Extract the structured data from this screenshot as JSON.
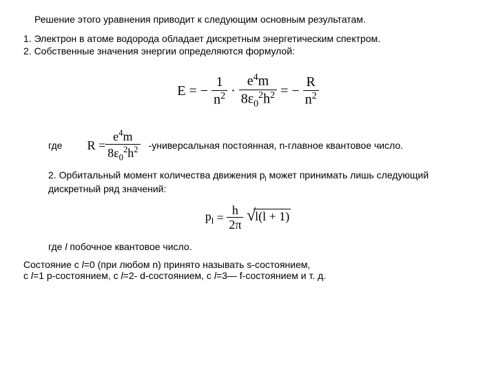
{
  "intro": "Решение этого уравнения приводит к следующим основным результатам.",
  "points": {
    "p1": "1. Электрон в атоме водорода обладает дискретным энергетическим спектром.",
    "p2": "2. Собственные значения энергии определяются формулой:"
  },
  "formula1": {
    "E": "E",
    "eq1": " = − ",
    "one": "1",
    "n2_a": "n",
    "dot": " · ",
    "num2": "e",
    "num2_m": "m",
    "den2_8": "8ε",
    "den2_h": "h",
    "eq2": " = − ",
    "R": "R",
    "n2_b": "n"
  },
  "where_row": {
    "gde": "где",
    "R": "R = ",
    "num": "e",
    "num_m": "m",
    "den_8": "8ε",
    "den_h": "h",
    "desc": "-универсальная постоянная, n-главное квантовое число."
  },
  "para2": {
    "t1": "2. Орбитальный момент количества движения p",
    "sub": "l",
    "t2": " может принимать лишь следующий дискретный ряд значений:"
  },
  "formula2": {
    "p": "p",
    "sub": "l",
    "eq": " = ",
    "h": "h",
    "twopi": "2π",
    "rad": "l(l + 1)"
  },
  "where2": {
    "t1": "где ",
    "l": "l",
    "t2": " побочное квантовое число."
  },
  "bottom": {
    "line1a": "Состояние с ",
    "l0": "l",
    "line1b": "=0 (при любом n) принято называть s-состоянием,",
    "line2a": "с ",
    "l1": "l",
    "line2b": "=1 p-состоянием, с ",
    "l2": "l",
    "line2c": "=2- d-состоянием, с ",
    "l3": "l",
    "line2d": "=3— f-состоянием и т. д."
  }
}
